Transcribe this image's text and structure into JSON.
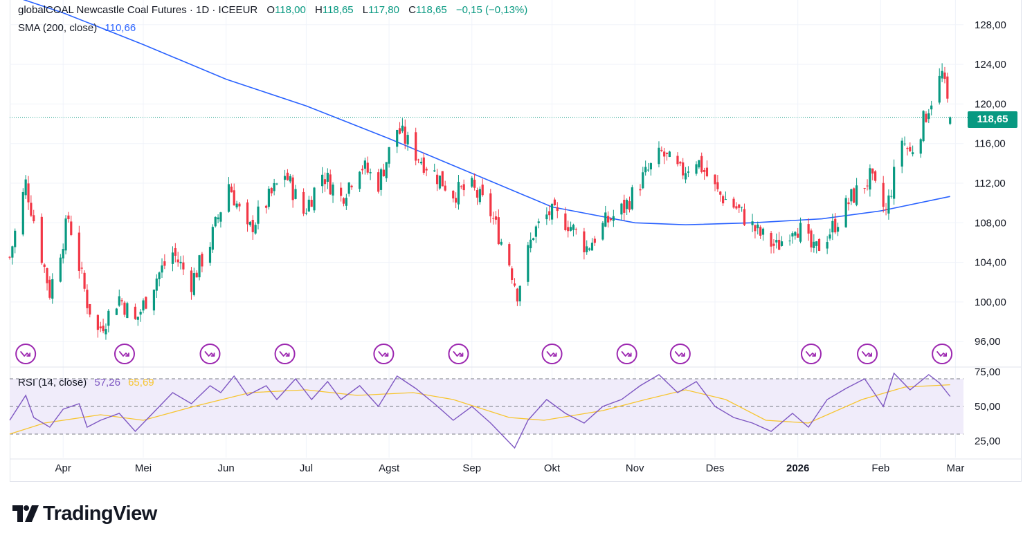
{
  "legend": {
    "symbol": "globalCOAL Newcastle Coal Futures · 1D · ICEEUR",
    "o_label": "O",
    "o_value": "118,00",
    "h_label": "H",
    "h_value": "118,65",
    "l_label": "L",
    "l_value": "117,80",
    "c_label": "C",
    "c_value": "118,65",
    "change": "−0,15 (−0,13%)"
  },
  "sma_legend": {
    "label": "SMA (200, close)",
    "value": "110,66"
  },
  "rsi_legend": {
    "label": "RSI (14, close)",
    "value": "57,26",
    "ma_value": "65,69"
  },
  "last_price": "118,65",
  "brand": {
    "name": "TradingView"
  },
  "colors": {
    "up": "#089981",
    "down": "#f23645",
    "sma": "#2962ff",
    "rsi": "#7e57c2",
    "rsi_ma": "#f7c530",
    "rsi_fill": "#f0ecfa"
  },
  "chart_data": [
    {
      "type": "candlestick",
      "ylim": [
        93.5,
        130.5
      ],
      "price_ticks": [
        "96,00",
        "100,00",
        "104,00",
        "108,00",
        "112,00",
        "116,00",
        "120,00",
        "124,00",
        "128,00"
      ],
      "time_ticks": [
        "Apr",
        "Mei",
        "Jun",
        "Jul",
        "Agst",
        "Sep",
        "Okt",
        "Nov",
        "Des",
        "2026",
        "Feb",
        "Mar"
      ],
      "x_range": [
        "2025-03-12",
        "2026-03-04"
      ],
      "last_price": 118.65,
      "candle_waypoints": [
        [
          "2025-03-12",
          104.5
        ],
        [
          "2025-03-18",
          112
        ],
        [
          "2025-03-27",
          101
        ],
        [
          "2025-04-03",
          108.5
        ],
        [
          "2025-04-10",
          100
        ],
        [
          "2025-04-14",
          97
        ],
        [
          "2025-04-22",
          100.5
        ],
        [
          "2025-04-28",
          98
        ],
        [
          "2025-05-06",
          102.5
        ],
        [
          "2025-05-12",
          105
        ],
        [
          "2025-05-19",
          102
        ],
        [
          "2025-05-26",
          106
        ],
        [
          "2025-06-02",
          112
        ],
        [
          "2025-06-09",
          107
        ],
        [
          "2025-06-16",
          110
        ],
        [
          "2025-06-23",
          113
        ],
        [
          "2025-06-30",
          109
        ],
        [
          "2025-07-07",
          113
        ],
        [
          "2025-07-14",
          110.5
        ],
        [
          "2025-07-21",
          114
        ],
        [
          "2025-07-28",
          112
        ],
        [
          "2025-08-04",
          117.5
        ],
        [
          "2025-08-11",
          115
        ],
        [
          "2025-08-18",
          113
        ],
        [
          "2025-08-25",
          111
        ],
        [
          "2025-09-01",
          111.5
        ],
        [
          "2025-09-08",
          109
        ],
        [
          "2025-09-15",
          104
        ],
        [
          "2025-09-18",
          101
        ],
        [
          "2025-09-24",
          107
        ],
        [
          "2025-09-30",
          109
        ],
        [
          "2025-10-07",
          108
        ],
        [
          "2025-10-14",
          105.5
        ],
        [
          "2025-10-21",
          108
        ],
        [
          "2025-10-28",
          109.5
        ],
        [
          "2025-11-04",
          112.5
        ],
        [
          "2025-11-11",
          115
        ],
        [
          "2025-11-18",
          113
        ],
        [
          "2025-11-24",
          114.5
        ],
        [
          "2025-12-02",
          111
        ],
        [
          "2025-12-09",
          109.5
        ],
        [
          "2025-12-17",
          107
        ],
        [
          "2025-12-24",
          105.5
        ],
        [
          "2025-12-31",
          108
        ],
        [
          "2026-01-07",
          105
        ],
        [
          "2026-01-14",
          107.5
        ],
        [
          "2026-01-21",
          110.5
        ],
        [
          "2026-01-28",
          112.5
        ],
        [
          "2026-02-03",
          109
        ],
        [
          "2026-02-09",
          116.5
        ],
        [
          "2026-02-12",
          115
        ],
        [
          "2026-02-16",
          117.5
        ],
        [
          "2026-02-20",
          120.5
        ],
        [
          "2026-02-24",
          123
        ],
        [
          "2026-02-27",
          118.65
        ]
      ],
      "sma_200": {
        "label": "SMA (200, close)",
        "points": [
          [
            "2025-03-12",
            131
          ],
          [
            "2025-04-01",
            129.2
          ],
          [
            "2025-05-01",
            126.0
          ],
          [
            "2025-06-01",
            122.5
          ],
          [
            "2025-07-01",
            119.8
          ],
          [
            "2025-08-01",
            116.5
          ],
          [
            "2025-09-01",
            113.0
          ],
          [
            "2025-10-01",
            109.6
          ],
          [
            "2025-11-01",
            108.0
          ],
          [
            "2025-11-20",
            107.8
          ],
          [
            "2025-12-15",
            108.0
          ],
          [
            "2026-01-10",
            108.4
          ],
          [
            "2026-02-01",
            109.2
          ],
          [
            "2026-02-27",
            110.66
          ]
        ]
      },
      "event_markers": [
        "2025-03-18",
        "2025-04-24",
        "2025-05-26",
        "2025-06-23",
        "2025-07-30",
        "2025-08-27",
        "2025-10-01",
        "2025-10-29",
        "2025-11-18",
        "2026-01-06",
        "2026-01-27",
        "2026-02-24"
      ]
    },
    {
      "type": "line",
      "ylim": [
        13,
        78
      ],
      "ticks": [
        "25,00",
        "50,00",
        "75,00"
      ],
      "levels": [
        30,
        50,
        70
      ],
      "rsi_points": [
        [
          "2025-03-12",
          40
        ],
        [
          "2025-03-18",
          58
        ],
        [
          "2025-03-21",
          42
        ],
        [
          "2025-03-27",
          35
        ],
        [
          "2025-04-01",
          48
        ],
        [
          "2025-04-07",
          52
        ],
        [
          "2025-04-10",
          35
        ],
        [
          "2025-04-15",
          40
        ],
        [
          "2025-04-22",
          45
        ],
        [
          "2025-04-28",
          32
        ],
        [
          "2025-05-02",
          40
        ],
        [
          "2025-05-07",
          50
        ],
        [
          "2025-05-12",
          60
        ],
        [
          "2025-05-19",
          52
        ],
        [
          "2025-05-26",
          65
        ],
        [
          "2025-05-30",
          60
        ],
        [
          "2025-06-04",
          72
        ],
        [
          "2025-06-09",
          58
        ],
        [
          "2025-06-16",
          65
        ],
        [
          "2025-06-20",
          55
        ],
        [
          "2025-06-27",
          70
        ],
        [
          "2025-07-03",
          55
        ],
        [
          "2025-07-09",
          68
        ],
        [
          "2025-07-14",
          55
        ],
        [
          "2025-07-21",
          65
        ],
        [
          "2025-07-28",
          50
        ],
        [
          "2025-08-04",
          72
        ],
        [
          "2025-08-11",
          63
        ],
        [
          "2025-08-18",
          52
        ],
        [
          "2025-08-25",
          40
        ],
        [
          "2025-09-01",
          50
        ],
        [
          "2025-09-08",
          38
        ],
        [
          "2025-09-12",
          30
        ],
        [
          "2025-09-17",
          20
        ],
        [
          "2025-09-22",
          40
        ],
        [
          "2025-09-29",
          55
        ],
        [
          "2025-10-06",
          45
        ],
        [
          "2025-10-13",
          38
        ],
        [
          "2025-10-20",
          50
        ],
        [
          "2025-10-27",
          55
        ],
        [
          "2025-11-03",
          65
        ],
        [
          "2025-11-10",
          73
        ],
        [
          "2025-11-17",
          60
        ],
        [
          "2025-11-24",
          68
        ],
        [
          "2025-12-01",
          50
        ],
        [
          "2025-12-08",
          42
        ],
        [
          "2025-12-15",
          38
        ],
        [
          "2025-12-22",
          32
        ],
        [
          "2025-12-30",
          45
        ],
        [
          "2026-01-05",
          35
        ],
        [
          "2026-01-12",
          55
        ],
        [
          "2026-01-19",
          63
        ],
        [
          "2026-01-26",
          70
        ],
        [
          "2026-02-02",
          50
        ],
        [
          "2026-02-06",
          74
        ],
        [
          "2026-02-12",
          62
        ],
        [
          "2026-02-19",
          73
        ],
        [
          "2026-02-23",
          67
        ],
        [
          "2026-02-27",
          57.26
        ]
      ],
      "rsi_ma_points": [
        [
          "2025-03-12",
          30
        ],
        [
          "2025-03-25",
          38
        ],
        [
          "2025-04-15",
          44
        ],
        [
          "2025-05-01",
          40
        ],
        [
          "2025-05-20",
          50
        ],
        [
          "2025-06-10",
          60
        ],
        [
          "2025-07-01",
          62
        ],
        [
          "2025-07-20",
          58
        ],
        [
          "2025-08-10",
          60
        ],
        [
          "2025-08-25",
          55
        ],
        [
          "2025-09-15",
          42
        ],
        [
          "2025-09-28",
          40
        ],
        [
          "2025-10-20",
          47
        ],
        [
          "2025-11-05",
          55
        ],
        [
          "2025-11-20",
          62
        ],
        [
          "2025-12-05",
          55
        ],
        [
          "2025-12-20",
          40
        ],
        [
          "2026-01-05",
          38
        ],
        [
          "2026-01-25",
          55
        ],
        [
          "2026-02-10",
          64
        ],
        [
          "2026-02-27",
          65.69
        ]
      ]
    }
  ]
}
